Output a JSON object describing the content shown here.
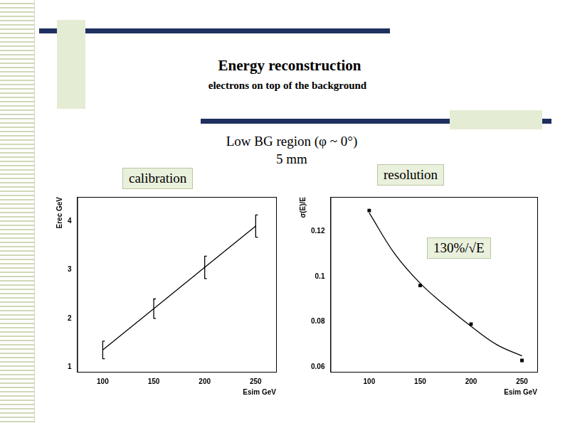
{
  "title": "Energy reconstruction",
  "subtitle": "electrons on top of the background",
  "region": "Low BG region (φ ~ 0°)",
  "pitch": "5 mm",
  "chart_data": [
    {
      "type": "line",
      "title": "calibration",
      "x_label": "Esim GeV",
      "y_label": "Erec GeV",
      "series": [
        {
          "type": "line",
          "color": "#000000",
          "marker": "none",
          "x": [
            100,
            150,
            200,
            250
          ],
          "values": [
            1.35,
            2.2,
            3.05,
            3.9
          ],
          "errors": [
            0.18,
            0.2,
            0.23,
            0.23
          ]
        }
      ],
      "xlim": [
        75,
        270
      ],
      "xticks": [
        100,
        150,
        200,
        250
      ],
      "ylim": [
        0.9,
        4.5
      ],
      "yticks": [
        1,
        2,
        3,
        4
      ],
      "grid": false
    },
    {
      "type": "scatter",
      "title": "resolution",
      "annotation": "130%/√E",
      "x_label": "Esim GeV",
      "y_label": "σ(E)/E",
      "series": [
        {
          "type": "scatter",
          "color": "#000000",
          "marker": "square",
          "x": [
            100,
            150,
            200,
            250
          ],
          "values": [
            0.129,
            0.096,
            0.079,
            0.063
          ]
        },
        {
          "type": "line",
          "color": "#000000",
          "marker": "none",
          "x": [
            100,
            125,
            150,
            175,
            200,
            225,
            250
          ],
          "values": [
            0.128,
            0.11,
            0.097,
            0.087,
            0.078,
            0.07,
            0.065
          ]
        }
      ],
      "xlim": [
        62,
        265
      ],
      "xticks": [
        100,
        150,
        200,
        250
      ],
      "ylim": [
        0.058,
        0.135
      ],
      "yticks": [
        0.06,
        0.08,
        0.1,
        0.12
      ],
      "grid": false
    }
  ]
}
